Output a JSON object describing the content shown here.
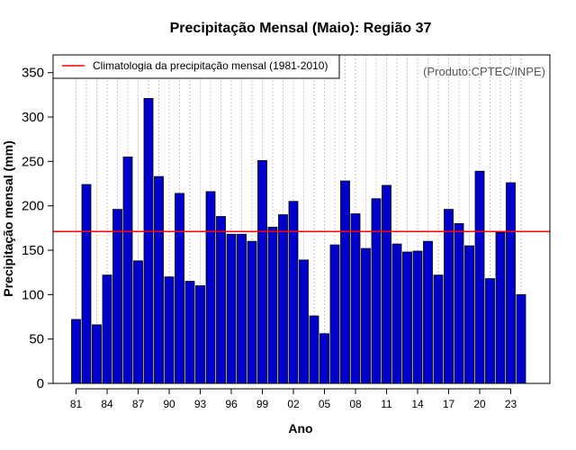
{
  "chart_data": {
    "type": "bar",
    "title": "Precipitação Mensal (Maio): Região 37",
    "xlabel": "Ano",
    "ylabel": "Precipitação mensal (mm)",
    "ylim": [
      0,
      370
    ],
    "yticks": [
      0,
      50,
      100,
      150,
      200,
      250,
      300,
      350
    ],
    "categories": [
      "1981",
      "1982",
      "1983",
      "1984",
      "1985",
      "1986",
      "1987",
      "1988",
      "1989",
      "1990",
      "1991",
      "1992",
      "1993",
      "1994",
      "1995",
      "1996",
      "1997",
      "1998",
      "1999",
      "2000",
      "2001",
      "2002",
      "2003",
      "2004",
      "2005",
      "2006",
      "2007",
      "2008",
      "2009",
      "2010",
      "2011",
      "2012",
      "2013",
      "2014",
      "2015",
      "2016",
      "2017",
      "2018",
      "2019",
      "2020",
      "2021",
      "2022",
      "2023",
      "2024"
    ],
    "xtick_labels": [
      "81",
      "84",
      "87",
      "90",
      "93",
      "96",
      "99",
      "02",
      "05",
      "08",
      "11",
      "14",
      "17",
      "20",
      "23"
    ],
    "xtick_indices": [
      0,
      3,
      6,
      9,
      12,
      15,
      18,
      21,
      24,
      27,
      30,
      33,
      36,
      39,
      42
    ],
    "values": [
      72,
      224,
      66,
      122,
      196,
      255,
      138,
      321,
      233,
      120,
      214,
      115,
      110,
      216,
      188,
      168,
      168,
      160,
      251,
      176,
      190,
      205,
      139,
      76,
      56,
      156,
      228,
      191,
      152,
      208,
      223,
      157,
      148,
      149,
      160,
      122,
      196,
      180,
      155,
      239,
      118,
      170,
      226,
      100
    ],
    "climatology": 171,
    "bar_color": "#0000cc",
    "climatology_color": "#ff0000",
    "grid": "vertical-dotted",
    "legend": {
      "position": "top-left",
      "label": "Climatologia da precipitação mensal (1981-2010)"
    },
    "credit": "(Produto:CPTEC/INPE)"
  }
}
